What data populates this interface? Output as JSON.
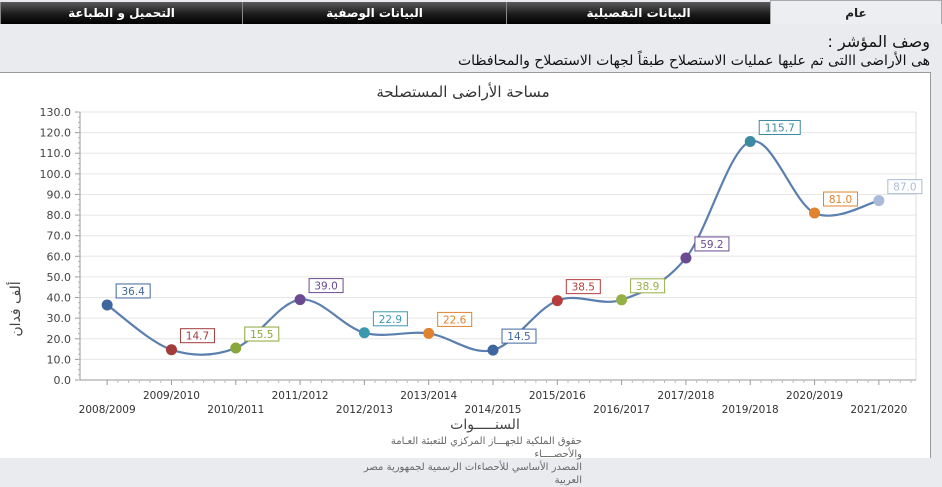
{
  "tabs": [
    {
      "label": "عام",
      "active": true
    },
    {
      "label": "البيانات التفصيلية",
      "active": false
    },
    {
      "label": "البيانات الوصفية",
      "active": false
    },
    {
      "label": "التحميل و الطباعة",
      "active": false
    }
  ],
  "description": {
    "title": "وصف المؤشر :",
    "text": "هى الأراضى االتى تم عليها عمليات الاستصلاح طبقاً لجهات الاستصلاح والمحافظات"
  },
  "footer": {
    "line1": "حقوق الملكية للجهـــاز المركزي للتعبئة العـامة والأحصــــاء",
    "line2": "المصدر الأساسي للأحصاءات الرسمية لجمهورية مصر العربية"
  },
  "chart_data": {
    "type": "line",
    "title": "مساحة الأراضى المستصلحة",
    "xlabel": "السنـــــوات",
    "ylabel": "ألف فدان",
    "ylim": [
      0,
      130
    ],
    "yticks": [
      "0.0",
      "10.0",
      "20.0",
      "30.0",
      "40.0",
      "50.0",
      "60.0",
      "70.0",
      "80.0",
      "90.0",
      "100.0",
      "110.0",
      "120.0",
      "130.0"
    ],
    "grid": true,
    "legend": "none",
    "smooth": true,
    "categories": [
      "2008/2009",
      "2009/2010",
      "2010/2011",
      "2011/2012",
      "2012/2013",
      "2013/2014",
      "2014/2015",
      "2015/2016",
      "2016/2017",
      "2017/2018",
      "2019/2018",
      "2020/2019",
      "2021/2020"
    ],
    "values": [
      36.4,
      14.7,
      15.5,
      39.0,
      22.9,
      22.6,
      14.5,
      38.5,
      38.9,
      59.2,
      115.7,
      81.0,
      87.0
    ],
    "labels": [
      "36.4",
      "14.7",
      "15.5",
      "39.0",
      "22.9",
      "22.6",
      "14.5",
      "38.5",
      "38.9",
      "59.2",
      "115.7",
      "81.0",
      "87.0"
    ],
    "point_colors": [
      "#3f679f",
      "#a33b3b",
      "#8aa83a",
      "#6a4a90",
      "#3b98ae",
      "#e0822e",
      "#3f679f",
      "#b73c3c",
      "#95b046",
      "#6a4a90",
      "#3b8aa0",
      "#e0822e",
      "#a9bbd8"
    ],
    "line_color": "#5b7fae"
  }
}
